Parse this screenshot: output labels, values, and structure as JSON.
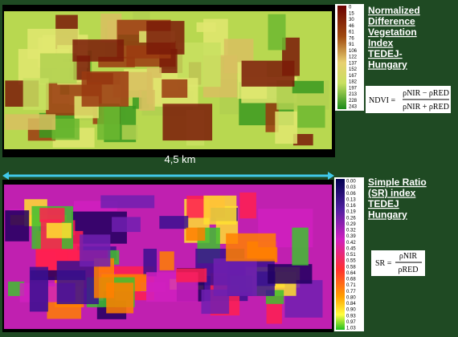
{
  "ndvi_panel": {
    "title_lines": [
      "Normalized",
      "Difference",
      "Vegetation",
      "Index",
      "TEDEJ-",
      "Hungary"
    ],
    "colorbar_labels": [
      "0",
      "15",
      "30",
      "46",
      "61",
      "76",
      "91",
      "106",
      "122",
      "137",
      "152",
      "167",
      "182",
      "197",
      "213",
      "228",
      "243"
    ],
    "formula": {
      "lhs": "NDVI =",
      "numerator": "ρNIR − ρRED",
      "denominator": "ρNIR + ρRED"
    }
  },
  "scale_label": "4,5 km",
  "sr_panel": {
    "title_lines": [
      "Simple Ratio",
      "(SR) index",
      "TEDEJ",
      "Hungary"
    ],
    "colorbar_labels": [
      "0.00",
      "0.03",
      "0.06",
      "0.13",
      "0.16",
      "0.19",
      "0.26",
      "0.29",
      "0.32",
      "0.39",
      "0.42",
      "0.45",
      "0.51",
      "0.55",
      "0.58",
      "0.64",
      "0.68",
      "0.71",
      "0.77",
      "0.80",
      "0.84",
      "0.90",
      "0.93",
      "0.97",
      "1.03"
    ],
    "formula": {
      "lhs": "SR =",
      "numerator": "ρNIR",
      "denominator": "ρRED"
    }
  }
}
